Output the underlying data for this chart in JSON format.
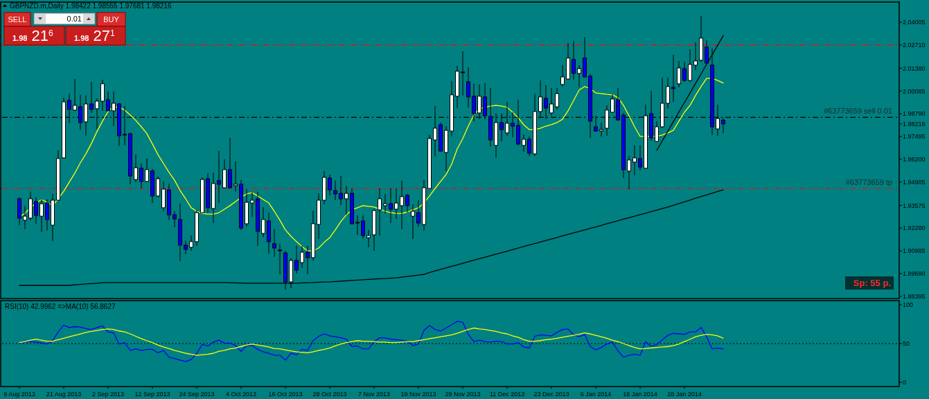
{
  "chart_data": [
    {
      "type": "candlestick",
      "title": "GBPNZD.m,Daily 1.98422 1.98555 1.97681 1.98216",
      "categories": [
        null,
        null,
        null,
        null,
        null,
        null,
        null,
        null,
        null,
        null,
        null,
        null,
        null,
        null,
        null,
        null,
        null,
        null,
        null,
        null,
        null,
        null,
        null,
        null,
        null,
        null,
        null,
        null,
        null,
        null,
        null,
        null,
        null,
        null,
        null,
        null,
        null,
        null,
        null,
        null,
        null,
        null,
        null,
        null,
        null,
        null,
        null,
        null,
        null,
        null,
        null,
        null,
        null,
        null,
        null,
        null,
        null,
        null,
        null,
        null,
        null,
        null,
        null,
        null,
        null,
        null,
        null,
        null,
        null,
        null,
        null,
        null,
        null,
        null,
        null,
        null,
        null,
        null,
        null,
        null,
        null,
        null,
        null,
        null,
        null,
        null,
        null,
        null,
        null,
        null,
        null,
        null,
        null,
        null,
        null,
        null,
        null,
        null,
        null,
        null,
        null,
        null,
        null,
        null,
        null,
        null,
        null,
        null,
        null,
        null,
        null,
        null,
        null,
        null,
        null,
        null,
        null,
        null,
        null,
        null,
        null,
        null,
        null,
        null,
        null,
        null,
        null,
        null
      ],
      "ohlc": [
        [
          1.9395,
          1.9403,
          1.9245,
          1.9285
        ],
        [
          1.9273,
          1.9356,
          1.9222,
          1.9296
        ],
        [
          1.9285,
          1.9435,
          1.9273,
          1.9395
        ],
        [
          1.9379,
          1.9403,
          1.9253,
          1.93
        ],
        [
          1.9296,
          1.9395,
          1.9206,
          1.9367
        ],
        [
          1.9371,
          1.9391,
          1.9214,
          1.9277
        ],
        [
          1.9245,
          1.9423,
          1.9155,
          1.9387
        ],
        [
          1.9387,
          1.9671,
          1.9387,
          1.9624
        ],
        [
          1.9628,
          1.9971,
          1.9624,
          1.9947
        ],
        [
          1.9955,
          1.9994,
          1.9825,
          1.9904
        ],
        [
          1.99,
          2.0077,
          1.9896,
          1.9927
        ],
        [
          1.9919,
          1.9987,
          1.9785,
          1.9829
        ],
        [
          1.9833,
          1.9983,
          1.9754,
          1.9935
        ],
        [
          1.9935,
          2.0061,
          1.9884,
          1.9904
        ],
        [
          1.9908,
          1.9967,
          1.9793,
          1.9951
        ],
        [
          1.9951,
          2.0073,
          1.9896,
          2.005
        ],
        [
          1.9959,
          2.0006,
          1.9896,
          1.9896
        ],
        [
          1.9896,
          2.0006,
          1.9809,
          1.9939
        ],
        [
          1.9935,
          1.9943,
          1.9695,
          1.9754
        ],
        [
          1.9762,
          1.9923,
          1.9699,
          1.9762
        ],
        [
          1.9766,
          1.977,
          1.9478,
          1.9525
        ],
        [
          1.9505,
          1.9647,
          1.949,
          1.9572
        ],
        [
          1.9569,
          1.9596,
          1.9454,
          1.9494
        ],
        [
          1.9494,
          1.9624,
          1.949,
          1.9561
        ],
        [
          1.9553,
          1.9565,
          1.9371,
          1.9411
        ],
        [
          1.9411,
          1.9521,
          1.9403,
          1.9509
        ],
        [
          1.9344,
          1.9494,
          1.9324,
          1.945
        ],
        [
          1.9446,
          1.9482,
          1.9273,
          1.9304
        ],
        [
          1.9304,
          1.9324,
          1.9233,
          1.9281
        ],
        [
          1.9277,
          1.9367,
          1.904,
          1.9131
        ],
        [
          1.9131,
          1.9158,
          1.908,
          1.9107
        ],
        [
          1.9119,
          1.9186,
          1.9099,
          1.9151
        ],
        [
          1.9151,
          1.9332,
          1.9127,
          1.9316
        ],
        [
          1.9316,
          1.9517,
          1.9312,
          1.9505
        ],
        [
          1.9509,
          1.9541,
          1.9316,
          1.9344
        ],
        [
          1.934,
          1.9545,
          1.9257,
          1.9482
        ],
        [
          1.9498,
          1.9667,
          1.9371,
          1.9478
        ],
        [
          1.9458,
          1.962,
          1.9454,
          1.9561
        ],
        [
          1.9561,
          1.9742,
          1.9454,
          1.9458
        ],
        [
          1.947,
          1.9608,
          1.9435,
          1.9478
        ],
        [
          1.9478,
          1.9502,
          1.9218,
          1.9229
        ],
        [
          1.9253,
          1.945,
          1.9237,
          1.9375
        ],
        [
          1.9371,
          1.9435,
          1.9292,
          1.9387
        ],
        [
          1.9395,
          1.9435,
          1.9127,
          1.921
        ],
        [
          1.9198,
          1.9348,
          1.9178,
          1.9277
        ],
        [
          1.9269,
          1.9316,
          1.9084,
          1.9151
        ],
        [
          1.9139,
          1.9222,
          1.9064,
          1.9115
        ],
        [
          1.9103,
          1.9139,
          1.8965,
          1.9103
        ],
        [
          1.9087,
          1.9099,
          1.8878,
          1.8922
        ],
        [
          1.8922,
          1.9056,
          1.8886,
          1.9044
        ],
        [
          1.9044,
          1.9127,
          1.8969,
          1.8989
        ],
        [
          1.9032,
          1.9127,
          1.9001,
          1.9091
        ],
        [
          1.9091,
          1.9127,
          1.8965,
          1.906
        ],
        [
          1.906,
          1.9328,
          1.9044,
          1.9253
        ],
        [
          1.9249,
          1.9426,
          1.9166,
          1.9387
        ],
        [
          1.9387,
          1.9553,
          1.9364,
          1.9517
        ],
        [
          1.9513,
          1.9533,
          1.9415,
          1.9446
        ],
        [
          1.9442,
          1.9498,
          1.9387,
          1.9423
        ],
        [
          1.9426,
          1.9525,
          1.936,
          1.9395
        ],
        [
          1.9395,
          1.947,
          1.9304,
          1.9426
        ],
        [
          1.9426,
          1.9454,
          1.9249,
          1.9253
        ],
        [
          1.9261,
          1.93,
          1.919,
          1.9261
        ],
        [
          1.9269,
          1.93,
          1.917,
          1.9186
        ],
        [
          1.9174,
          1.9218,
          1.9119,
          1.9186
        ],
        [
          1.919,
          1.9336,
          1.9099,
          1.9328
        ],
        [
          1.9332,
          1.9454,
          1.9186,
          1.9395
        ],
        [
          1.9356,
          1.9423,
          1.9312,
          1.9367
        ],
        [
          1.9367,
          1.9454,
          1.9257,
          1.9336
        ],
        [
          1.9336,
          1.9454,
          1.9281,
          1.9371
        ],
        [
          1.9356,
          1.9498,
          1.9222,
          1.9407
        ],
        [
          1.9415,
          1.9423,
          1.9316,
          1.9356
        ],
        [
          1.9296,
          1.9364,
          1.9166,
          1.9324
        ],
        [
          1.9316,
          1.9387,
          1.9237,
          1.9257
        ],
        [
          1.9249,
          1.9502,
          1.9214,
          1.9458
        ],
        [
          1.9454,
          1.9758,
          1.9454,
          1.9738
        ],
        [
          1.973,
          1.9923,
          1.9636,
          1.9797
        ],
        [
          1.9817,
          1.9829,
          1.9663,
          1.9667
        ],
        [
          1.9659,
          1.9809,
          1.9553,
          1.9785
        ],
        [
          1.9781,
          2.0065,
          1.975,
          1.9987
        ],
        [
          1.9979,
          2.0152,
          1.9912,
          2.0121
        ],
        [
          2.0117,
          2.0235,
          1.9983,
          2.0117
        ],
        [
          2.0061,
          2.0144,
          1.9915,
          1.9975
        ],
        [
          1.9979,
          2.005,
          1.9837,
          1.988
        ],
        [
          1.9884,
          2.0046,
          1.9848,
          1.9979
        ],
        [
          1.9975,
          2.0054,
          1.9848,
          1.9868
        ],
        [
          1.9864,
          2.0026,
          1.9691,
          1.973
        ],
        [
          1.9699,
          1.988,
          1.9628,
          1.9829
        ],
        [
          1.9829,
          1.988,
          1.9722,
          1.9789
        ],
        [
          1.977,
          1.9947,
          1.9754,
          1.9825
        ],
        [
          1.9825,
          1.9888,
          1.9746,
          1.9809
        ],
        [
          1.9813,
          1.9959,
          1.9699,
          1.9707
        ],
        [
          1.9699,
          1.9762,
          1.9663,
          1.9734
        ],
        [
          1.9734,
          1.975,
          1.964,
          1.9655
        ],
        [
          1.9651,
          1.9994,
          1.964,
          1.9892
        ],
        [
          1.9892,
          2.0069,
          1.9856,
          1.9975
        ],
        [
          1.9967,
          2.0042,
          1.9848,
          1.9912
        ],
        [
          1.9884,
          2.0026,
          1.9868,
          1.9935
        ],
        [
          1.9919,
          2.0026,
          1.9904,
          1.9994
        ],
        [
          2.0046,
          2.0156,
          2.0034,
          2.0089
        ],
        [
          2.0077,
          2.0282,
          2.0073,
          2.0196
        ],
        [
          2.0188,
          2.0294,
          2.0073,
          2.0109
        ],
        [
          2.0109,
          2.0156,
          2.003,
          2.0136
        ],
        [
          2.0196,
          2.0314,
          2.0085,
          2.0089
        ],
        [
          2.0093,
          2.0105,
          1.9742,
          1.9837
        ],
        [
          1.9805,
          1.9868,
          1.9777,
          1.9781
        ],
        [
          1.9781,
          1.9829,
          1.975,
          1.9789
        ],
        [
          1.9797,
          1.9927,
          1.9754,
          1.99
        ],
        [
          1.9888,
          1.999,
          1.9884,
          1.9963
        ],
        [
          1.9959,
          2.0026,
          1.9841,
          1.9844
        ],
        [
          1.9872,
          1.9884,
          1.9513,
          1.9561
        ],
        [
          1.9553,
          1.964,
          1.945,
          1.9616
        ],
        [
          1.9604,
          1.9699,
          1.9529,
          1.9628
        ],
        [
          1.9624,
          1.9699,
          1.9557,
          1.9576
        ],
        [
          1.9569,
          1.9931,
          1.9569,
          1.9868
        ],
        [
          1.988,
          2.001,
          1.9726,
          1.9742
        ],
        [
          1.9722,
          1.9837,
          1.9718,
          1.9805
        ],
        [
          1.9805,
          2.0085,
          1.9797,
          1.9939
        ],
        [
          1.9939,
          2.0085,
          1.9908,
          2.0034
        ],
        [
          2.003,
          2.0215,
          1.9947,
          2.0022
        ],
        [
          2.005,
          2.018,
          2.003,
          2.014
        ],
        [
          2.0136,
          2.0176,
          2.0061,
          2.0069
        ],
        [
          2.0069,
          2.0247,
          2.0061,
          2.016
        ],
        [
          2.0156,
          2.0286,
          2.0128,
          2.018
        ],
        [
          2.0184,
          2.0436,
          2.0176,
          2.031
        ],
        [
          2.0259,
          2.0298,
          2.0164,
          2.0168
        ],
        [
          2.0156,
          2.0251,
          1.9758,
          1.9805
        ],
        [
          1.9793,
          1.9931,
          1.9754,
          1.9852
        ],
        [
          1.98422,
          1.98555,
          1.97681,
          1.98216
        ]
      ],
      "colors": [
        "#0000ff",
        "#ffffff",
        "#ffffff",
        "#0000ff",
        "#ffffff",
        "#0000ff",
        "#ffffff",
        "#ffffff",
        "#ffffff",
        "#0000ff",
        "#ffffff",
        "#0000ff",
        "#ffffff",
        "#0000ff",
        "#ffffff",
        "#ffffff",
        "#0000ff",
        "#ffffff",
        "#0000ff",
        "#ffffff",
        "#0000ff",
        "#ffffff",
        "#0000ff",
        "#ffffff",
        "#0000ff",
        "#ffffff",
        "#ffffff",
        "#0000ff",
        "#0000ff",
        "#0000ff",
        "#0000ff",
        "#ffffff",
        "#ffffff",
        "#ffffff",
        "#0000ff",
        "#ffffff",
        "#0000ff",
        "#ffffff",
        "#0000ff",
        "#ffffff",
        "#0000ff",
        "#ffffff",
        "#ffffff",
        "#0000ff",
        "#ffffff",
        "#0000ff",
        "#0000ff",
        "#ffffff",
        "#0000ff",
        "#ffffff",
        "#0000ff",
        "#ffffff",
        "#0000ff",
        "#ffffff",
        "#ffffff",
        "#ffffff",
        "#0000ff",
        "#0000ff",
        "#0000ff",
        "#ffffff",
        "#0000ff",
        "#ffffff",
        "#0000ff",
        "#ffffff",
        "#ffffff",
        "#ffffff",
        "#ffffff",
        "#0000ff",
        "#ffffff",
        "#ffffff",
        "#0000ff",
        "#ffffff",
        "#0000ff",
        "#ffffff",
        "#ffffff",
        "#ffffff",
        "#0000ff",
        "#ffffff",
        "#ffffff",
        "#ffffff",
        "#ffffff",
        "#0000ff",
        "#0000ff",
        "#ffffff",
        "#0000ff",
        "#0000ff",
        "#ffffff",
        "#0000ff",
        "#ffffff",
        "#0000ff",
        "#0000ff",
        "#ffffff",
        "#0000ff",
        "#ffffff",
        "#ffffff",
        "#0000ff",
        "#ffffff",
        "#ffffff",
        "#ffffff",
        "#ffffff",
        "#0000ff",
        "#ffffff",
        "#0000ff",
        "#0000ff",
        "#0000ff",
        "#ffffff",
        "#ffffff",
        "#ffffff",
        "#0000ff",
        "#0000ff",
        "#ffffff",
        "#ffffff",
        "#0000ff",
        "#ffffff",
        "#0000ff",
        "#ffffff",
        "#ffffff",
        "#ffffff",
        "#0000ff",
        "#ffffff",
        "#0000ff",
        "#ffffff",
        "#ffffff",
        "#ffffff",
        "#0000ff",
        "#0000ff",
        "#ffffff",
        "#0000ff"
      ],
      "series": [
        {
          "type": "line",
          "color": "#ffff00",
          "values": [
            1.9292,
            1.9312,
            1.9344,
            1.9371,
            1.9391,
            1.9375,
            1.9356,
            1.9395,
            1.9438,
            1.949,
            1.9541,
            1.96,
            1.9651,
            1.971,
            1.9778,
            1.9837,
            1.9892,
            1.9919,
            1.9916,
            1.99,
            1.9872,
            1.9841,
            1.9805,
            1.9766,
            1.9707,
            1.9647,
            1.9596,
            1.9545,
            1.9501,
            1.9442,
            1.9395,
            1.9344,
            1.9324,
            1.9312,
            1.9308,
            1.9308,
            1.9316,
            1.9336,
            1.9356,
            1.9379,
            1.9403,
            1.9423,
            1.943,
            1.9411,
            1.9391,
            1.9371,
            1.9324,
            1.9273,
            1.9218,
            1.9182,
            1.9151,
            1.9123,
            1.9099,
            1.9099,
            1.9115,
            1.9147,
            1.9174,
            1.9218,
            1.9265,
            1.9304,
            1.9332,
            1.9344,
            1.9356,
            1.9352,
            1.9348,
            1.9336,
            1.9324,
            1.9316,
            1.9312,
            1.9312,
            1.932,
            1.9332,
            1.9344,
            1.9371,
            1.9411,
            1.9454,
            1.9494,
            1.9533,
            1.9592,
            1.9679,
            1.9738,
            1.9809,
            1.9872,
            1.9908,
            1.9916,
            1.9923,
            1.9927,
            1.9923,
            1.9916,
            1.9888,
            1.9856,
            1.9817,
            1.9789,
            1.9789,
            1.9797,
            1.9809,
            1.9817,
            1.9829,
            1.9848,
            1.9896,
            1.9955,
            2.0014,
            2.0034,
            2.0022,
            1.9998,
            1.9994,
            1.999,
            1.9987,
            1.9971,
            1.9927,
            1.9868,
            1.9805,
            1.975,
            1.975,
            1.975,
            1.975,
            1.9758,
            1.977,
            1.9785,
            1.9837,
            1.9888,
            1.9927,
            1.9983,
            2.0034,
            2.0081,
            2.0081,
            2.0069,
            2.0054
          ]
        },
        {
          "type": "line",
          "color": "#000000",
          "values": [
            1.8902,
            1.8902,
            1.8902,
            1.8902,
            1.8902,
            1.8902,
            1.8902,
            1.8902,
            1.8902,
            1.8902,
            1.8905,
            1.8907,
            1.891,
            1.8912,
            1.8914,
            1.8917,
            1.8918,
            1.8918,
            1.8918,
            1.8918,
            1.8918,
            1.8918,
            1.8918,
            1.8918,
            1.8918,
            1.8918,
            1.8918,
            1.8918,
            1.8918,
            1.8918,
            1.8918,
            1.8918,
            1.8918,
            1.8918,
            1.8918,
            1.8918,
            1.8918,
            1.8918,
            1.8917,
            1.8916,
            1.8915,
            1.8914,
            1.8914,
            1.8914,
            1.8914,
            1.8914,
            1.8914,
            1.8914,
            1.8914,
            1.8914,
            1.8914,
            1.8916,
            1.8917,
            1.8918,
            1.892,
            1.8921,
            1.8922,
            1.8924,
            1.8926,
            1.8928,
            1.893,
            1.8932,
            1.8934,
            1.8936,
            1.8938,
            1.894,
            1.8941,
            1.8943,
            1.8945,
            1.8949,
            1.8953,
            1.8957,
            1.8961,
            1.8965,
            1.8975,
            1.8984,
            1.8993,
            1.9002,
            1.9011,
            1.9019,
            1.9028,
            1.9037,
            1.9045,
            1.9054,
            1.9062,
            1.9071,
            1.908,
            1.9088,
            1.9097,
            1.9106,
            1.9114,
            1.9123,
            1.9132,
            1.914,
            1.9149,
            1.9158,
            1.9166,
            1.9175,
            1.9184,
            1.9192,
            1.9201,
            1.9209,
            1.9218,
            1.9227,
            1.9235,
            1.9244,
            1.9253,
            1.9261,
            1.927,
            1.9279,
            1.9287,
            1.9296,
            1.9305,
            1.9313,
            1.9322,
            1.933,
            1.9339,
            1.9348,
            1.9358,
            1.9368,
            1.9378,
            1.9388,
            1.9398,
            1.9408,
            1.9417,
            1.9427,
            1.9437,
            1.9446
          ]
        },
        {
          "type": "line",
          "color": "#000000",
          "values": [
            null,
            null,
            null,
            null,
            null,
            null,
            null,
            null,
            null,
            null,
            null,
            null,
            null,
            null,
            null,
            null,
            null,
            null,
            null,
            null,
            null,
            null,
            null,
            null,
            null,
            null,
            null,
            null,
            null,
            null,
            null,
            null,
            null,
            null,
            null,
            null,
            null,
            null,
            null,
            null,
            null,
            null,
            null,
            null,
            null,
            null,
            null,
            null,
            null,
            null,
            null,
            null,
            null,
            null,
            null,
            null,
            null,
            null,
            null,
            null,
            null,
            null,
            null,
            null,
            null,
            null,
            null,
            null,
            null,
            null,
            null,
            null,
            null,
            null,
            null,
            null,
            null,
            null,
            null,
            null,
            null,
            null,
            null,
            null,
            null,
            null,
            null,
            null,
            null,
            null,
            null,
            null,
            null,
            null,
            null,
            null,
            null,
            null,
            null,
            null,
            null,
            null,
            null,
            null,
            null,
            null,
            null,
            null,
            null,
            null,
            null,
            null,
            null,
            null,
            null,
            1.9671,
            1.9725,
            1.978,
            1.9834,
            1.9889,
            1.9943,
            1.9997,
            2.0052,
            2.0106,
            2.0161,
            2.0215,
            2.0269,
            2.0324
          ]
        }
      ],
      "ylim": [
        1.8827,
        2.0515
      ],
      "yticks": [
        {
          "value": 1.88395,
          "label": "1.88395"
        },
        {
          "value": 1.8969,
          "label": "1.89690"
        },
        {
          "value": 1.90985,
          "label": "1.90985"
        },
        {
          "value": 1.9228,
          "label": "1.92280"
        },
        {
          "value": 1.93575,
          "label": "1.93575"
        },
        {
          "value": 1.94905,
          "label": "1.94905"
        },
        {
          "value": 1.962,
          "label": "1.96200"
        },
        {
          "value": 1.97495,
          "label": "1.97495"
        },
        {
          "value": 1.98216,
          "label": "1.98216"
        },
        {
          "value": 1.9879,
          "label": "1.98790"
        },
        {
          "value": 2.00085,
          "label": "2.00085"
        },
        {
          "value": 2.0138,
          "label": "2.01380"
        },
        {
          "value": 2.0271,
          "label": "2.02710"
        },
        {
          "value": 2.04005,
          "label": "2.04005"
        }
      ],
      "tick_labels": "y",
      "ref_lines": [
        {
          "axis": "y",
          "value": 2.0269,
          "color": "#ff0000",
          "line_style": "dashed"
        },
        {
          "axis": "y",
          "value": 1.9859,
          "label": "#63773659 sell 0.01",
          "color": "#000000",
          "line_style": "dashed"
        },
        {
          "axis": "y",
          "value": 1.9454,
          "label": "#63773659 tp",
          "color": "#ff0000",
          "line_style": "dashed"
        }
      ],
      "annotations": [
        "SELL",
        "0.01",
        "BUY",
        "1.98 21$^{6}$",
        "1.98 27$^{1}$",
        "Sp: 55 p."
      ]
    },
    {
      "type": "line",
      "title": "RSI(10) 42.9962 =>MA(10) 56.8627",
      "categories": [
        "9 Aug 2013",
        null,
        null,
        null,
        null,
        null,
        null,
        null,
        "21 Aug 2013",
        null,
        null,
        null,
        null,
        null,
        null,
        null,
        "2 Sep 2013",
        null,
        null,
        null,
        null,
        null,
        null,
        null,
        "12 Sep 2013",
        null,
        null,
        null,
        null,
        null,
        null,
        null,
        "24 Sep 2013",
        null,
        null,
        null,
        null,
        null,
        null,
        null,
        "4 Oct 2013",
        null,
        null,
        null,
        null,
        null,
        null,
        null,
        "16 Oct 2013",
        null,
        null,
        null,
        null,
        null,
        null,
        null,
        "28 Oct 2013",
        null,
        null,
        null,
        null,
        null,
        null,
        null,
        "7 Nov 2013",
        null,
        null,
        null,
        null,
        null,
        null,
        null,
        "19 Nov 2013",
        null,
        null,
        null,
        null,
        null,
        null,
        null,
        "29 Nov 2013",
        null,
        null,
        null,
        null,
        null,
        null,
        null,
        "11 Dec 2013",
        null,
        null,
        null,
        null,
        null,
        null,
        null,
        "23 Dec 2013",
        null,
        null,
        null,
        null,
        null,
        null,
        null,
        "6 Jan 2014",
        null,
        null,
        null,
        null,
        null,
        null,
        null,
        "16 Jan 2014",
        null,
        null,
        null,
        null,
        null,
        null,
        null,
        "28 Jan 2014",
        null,
        null,
        null,
        null,
        null,
        null,
        null
      ],
      "series": [
        {
          "color": "#0000ff",
          "values": [
            50.6,
            51.9,
            52.5,
            51.9,
            50.6,
            49.4,
            53.8,
            65.0,
            73.8,
            70.7,
            71.9,
            71.3,
            69.4,
            68.2,
            70.7,
            72.6,
            65.0,
            63.8,
            49.4,
            51.3,
            41.2,
            43.1,
            41.2,
            42.5,
            42.5,
            38.1,
            41.2,
            32.5,
            30.6,
            28.7,
            26.8,
            29.3,
            37.5,
            48.7,
            46.9,
            51.9,
            54.4,
            50.6,
            50.6,
            47.5,
            40.0,
            47.5,
            47.5,
            42.5,
            39.3,
            37.5,
            35.0,
            35.0,
            28.7,
            37.5,
            35.6,
            42.5,
            41.2,
            53.8,
            59.4,
            62.5,
            60.0,
            58.8,
            57.5,
            55.6,
            46.2,
            46.9,
            43.1,
            43.1,
            52.5,
            57.5,
            57.5,
            55.6,
            55.0,
            54.4,
            53.1,
            47.5,
            49.4,
            66.9,
            73.2,
            68.2,
            66.3,
            70.1,
            74.4,
            78.8,
            77.6,
            61.9,
            52.5,
            54.4,
            52.5,
            51.9,
            53.1,
            52.5,
            49.4,
            49.4,
            51.3,
            45.6,
            44.4,
            59.4,
            61.3,
            60.6,
            60.0,
            64.4,
            68.2,
            68.8,
            61.3,
            58.8,
            61.9,
            46.2,
            41.8,
            45.0,
            49.4,
            51.9,
            40.6,
            32.5,
            35.0,
            36.2,
            35.0,
            52.5,
            46.2,
            48.7,
            55.0,
            60.6,
            63.2,
            62.5,
            61.9,
            65.0,
            65.0,
            70.7,
            58.8,
            43.1,
            44.4,
            43.0
          ]
        },
        {
          "color": "#ffff00",
          "values": [
            51.2,
            52.5,
            54.4,
            55.6,
            54.4,
            53.1,
            53.1,
            55.0,
            56.9,
            58.8,
            60.6,
            62.5,
            64.4,
            65.7,
            66.9,
            68.2,
            68.8,
            68.2,
            66.3,
            65.0,
            62.5,
            59.4,
            56.3,
            53.8,
            51.2,
            48.1,
            45.6,
            43.7,
            41.2,
            39.3,
            37.5,
            36.2,
            35.0,
            35.6,
            36.2,
            37.5,
            40.0,
            41.2,
            43.1,
            44.4,
            46.2,
            48.1,
            49.4,
            48.1,
            46.9,
            45.6,
            43.7,
            43.1,
            41.8,
            40.6,
            39.3,
            38.7,
            38.1,
            39.3,
            41.2,
            42.5,
            44.4,
            46.9,
            49.4,
            51.2,
            52.5,
            53.8,
            53.1,
            53.1,
            52.5,
            51.9,
            51.9,
            51.2,
            51.2,
            51.9,
            52.5,
            52.5,
            53.8,
            55.0,
            56.3,
            57.5,
            58.8,
            60.0,
            61.3,
            63.2,
            65.7,
            68.2,
            70.1,
            68.8,
            68.2,
            66.9,
            65.7,
            63.8,
            62.5,
            60.0,
            58.1,
            55.0,
            53.1,
            53.1,
            53.8,
            55.0,
            55.6,
            56.9,
            58.1,
            59.4,
            60.6,
            61.9,
            63.8,
            62.5,
            60.6,
            58.8,
            56.9,
            54.4,
            52.5,
            50.0,
            47.5,
            45.0,
            43.1,
            43.7,
            44.4,
            45.0,
            45.6,
            46.2,
            47.5,
            49.4,
            52.5,
            55.6,
            58.8,
            60.6,
            61.9,
            61.3,
            60.0,
            56.9
          ]
        }
      ],
      "ylim": [
        -5.4,
        105.4
      ],
      "yticks": [
        0,
        50,
        100
      ],
      "ref_lines": [
        {
          "axis": "y",
          "value": 50,
          "color": "#000000",
          "line_style": "dotted"
        }
      ]
    }
  ]
}
